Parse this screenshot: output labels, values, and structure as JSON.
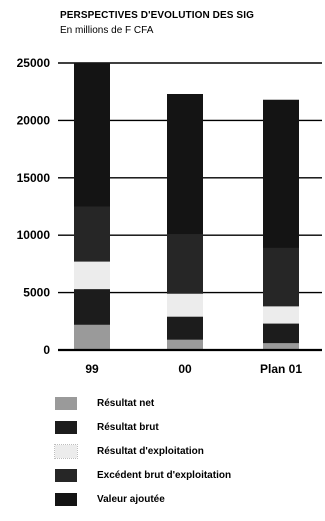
{
  "header": {
    "title": "PERSPECTIVES D'EVOLUTION DES SIG",
    "subtitle": "En millions de F CFA"
  },
  "chart_data": {
    "type": "bar",
    "title": "PERSPECTIVES D'EVOLUTION DES SIG",
    "subtitle": "En millions de F CFA",
    "categories": [
      "99",
      "00",
      "Plan 01"
    ],
    "ylim": [
      0,
      25000
    ],
    "yticks": [
      "25000",
      "20000",
      "15000",
      "10000",
      "5000",
      "0"
    ],
    "grid": true,
    "legend_position": "bottom",
    "overlapping_bars": true,
    "series": [
      {
        "name": "Valeur ajoutée",
        "values": [
          25000,
          22300,
          21800
        ],
        "color": "#141414"
      },
      {
        "name": "Excédent brut d'exploitation",
        "values": [
          12500,
          10100,
          8900
        ],
        "color": "#262626"
      },
      {
        "name": "Résultat d'exploitation",
        "values": [
          7700,
          4900,
          3800
        ],
        "color": "#ececec"
      },
      {
        "name": "Résultat brut",
        "values": [
          5300,
          2900,
          2300
        ],
        "color": "#1c1c1c"
      },
      {
        "name": "Résultat net",
        "values": [
          2200,
          900,
          600
        ],
        "color": "#9a9a9a"
      }
    ],
    "legend_order": [
      "Résultat net",
      "Résultat brut",
      "Résultat d'exploitation",
      "Excédent brut d'exploitation",
      "Valeur ajoutée"
    ]
  },
  "legend": {
    "items": [
      {
        "label": "Résultat net",
        "color": "#9a9a9a"
      },
      {
        "label": "Résultat brut",
        "color": "#1c1c1c"
      },
      {
        "label": "Résultat d'exploitation",
        "color": "#ececec"
      },
      {
        "label": "Excédent brut d'exploitation",
        "color": "#262626"
      },
      {
        "label": "Valeur ajoutée",
        "color": "#141414"
      }
    ]
  }
}
